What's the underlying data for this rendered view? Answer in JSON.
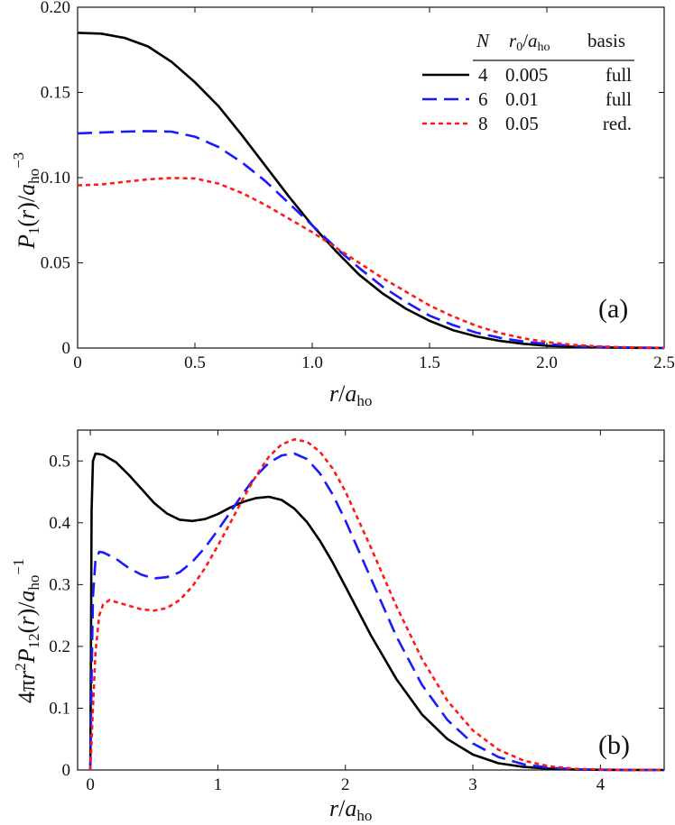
{
  "chart_data": [
    {
      "type": "line",
      "panel_label": "(a)",
      "xlabel": "r/a_ho",
      "ylabel": "P_1(r)/a_ho^-3",
      "xlim": [
        0,
        2.5
      ],
      "ylim": [
        0,
        0.2
      ],
      "xticks": [
        "0",
        "0.5",
        "1.0",
        "1.5",
        "2.0",
        "2.5"
      ],
      "xtick_values": [
        0,
        0.5,
        1.0,
        1.5,
        2.0,
        2.5
      ],
      "yticks": [
        "0",
        "0.05",
        "0.10",
        "0.15",
        "0.20"
      ],
      "ytick_values": [
        0,
        0.05,
        0.1,
        0.15,
        0.2
      ],
      "grid": false,
      "legend": {
        "placement": "top-right",
        "headers": [
          "N",
          "r0/a_ho",
          "basis"
        ],
        "rows": [
          {
            "N": "4",
            "r0": "0.005",
            "basis": "full",
            "color": "#000000",
            "style": "solid"
          },
          {
            "N": "6",
            "r0": "0.01",
            "basis": "full",
            "color": "#1a1aff",
            "style": "dashed"
          },
          {
            "N": "8",
            "r0": "0.05",
            "basis": "red.",
            "color": "#ff1a1a",
            "style": "dotted"
          }
        ]
      },
      "series": [
        {
          "color": "#000000",
          "style": "solid",
          "x": [
            0,
            0.1,
            0.2,
            0.3,
            0.4,
            0.5,
            0.6,
            0.7,
            0.8,
            0.9,
            1.0,
            1.1,
            1.2,
            1.3,
            1.4,
            1.5,
            1.6,
            1.7,
            1.8,
            1.9,
            2.0,
            2.1,
            2.2,
            2.3,
            2.4,
            2.5
          ],
          "y": [
            0.185,
            0.1845,
            0.182,
            0.177,
            0.168,
            0.156,
            0.142,
            0.125,
            0.107,
            0.089,
            0.072,
            0.057,
            0.043,
            0.032,
            0.023,
            0.016,
            0.0105,
            0.0068,
            0.0042,
            0.0025,
            0.0014,
            0.0008,
            0.0004,
            0.0002,
            0.0001,
            0.0
          ]
        },
        {
          "color": "#1a1aff",
          "style": "dashed",
          "x": [
            0,
            0.1,
            0.2,
            0.3,
            0.4,
            0.5,
            0.6,
            0.7,
            0.8,
            0.9,
            1.0,
            1.1,
            1.2,
            1.3,
            1.4,
            1.5,
            1.6,
            1.7,
            1.8,
            1.9,
            2.0,
            2.1,
            2.2,
            2.3,
            2.4,
            2.5
          ],
          "y": [
            0.126,
            0.1265,
            0.127,
            0.1273,
            0.127,
            0.124,
            0.118,
            0.109,
            0.098,
            0.085,
            0.072,
            0.059,
            0.047,
            0.036,
            0.027,
            0.019,
            0.0135,
            0.009,
            0.006,
            0.0038,
            0.0023,
            0.0013,
            0.0007,
            0.0004,
            0.0002,
            0.0001
          ]
        },
        {
          "color": "#ff1a1a",
          "style": "dotted",
          "x": [
            0,
            0.1,
            0.2,
            0.3,
            0.4,
            0.5,
            0.6,
            0.7,
            0.8,
            0.9,
            1.0,
            1.1,
            1.2,
            1.3,
            1.4,
            1.5,
            1.6,
            1.7,
            1.8,
            1.9,
            2.0,
            2.1,
            2.2,
            2.3,
            2.4,
            2.5
          ],
          "y": [
            0.0955,
            0.096,
            0.0975,
            0.099,
            0.0998,
            0.0995,
            0.0965,
            0.091,
            0.084,
            0.076,
            0.068,
            0.059,
            0.05,
            0.041,
            0.033,
            0.025,
            0.0185,
            0.013,
            0.0088,
            0.0057,
            0.0035,
            0.002,
            0.0011,
            0.0006,
            0.0003,
            0.0001
          ]
        }
      ]
    },
    {
      "type": "line",
      "panel_label": "(b)",
      "xlabel": "r/a_ho",
      "ylabel": "4πr^2 P_12(r)/a_ho^-1",
      "xlim": [
        -0.1,
        4.5
      ],
      "ylim": [
        0,
        0.55
      ],
      "xticks": [
        "0",
        "1",
        "2",
        "3",
        "4"
      ],
      "xtick_values": [
        0,
        1,
        2,
        3,
        4
      ],
      "yticks": [
        "0",
        "0.1",
        "0.2",
        "0.3",
        "0.4",
        "0.5"
      ],
      "ytick_values": [
        0,
        0.1,
        0.2,
        0.3,
        0.4,
        0.5
      ],
      "grid": false,
      "series": [
        {
          "color": "#000000",
          "style": "solid",
          "x": [
            0.0,
            0.005,
            0.01,
            0.02,
            0.04,
            0.1,
            0.2,
            0.3,
            0.4,
            0.5,
            0.6,
            0.7,
            0.8,
            0.9,
            1.0,
            1.1,
            1.2,
            1.3,
            1.4,
            1.5,
            1.6,
            1.7,
            1.8,
            1.9,
            2.0,
            2.2,
            2.4,
            2.6,
            2.8,
            3.0,
            3.2,
            3.4,
            3.6,
            3.8,
            4.0,
            4.2,
            4.5
          ],
          "y": [
            0.0,
            0.2,
            0.42,
            0.5,
            0.512,
            0.51,
            0.498,
            0.478,
            0.455,
            0.432,
            0.415,
            0.405,
            0.403,
            0.406,
            0.414,
            0.425,
            0.434,
            0.44,
            0.442,
            0.437,
            0.423,
            0.401,
            0.371,
            0.336,
            0.297,
            0.218,
            0.147,
            0.09,
            0.05,
            0.025,
            0.011,
            0.005,
            0.002,
            0.0008,
            0.0003,
            0.0001,
            0.0
          ]
        },
        {
          "color": "#1a1aff",
          "style": "dashed",
          "x": [
            0.0,
            0.01,
            0.02,
            0.04,
            0.07,
            0.1,
            0.2,
            0.3,
            0.4,
            0.5,
            0.6,
            0.7,
            0.8,
            0.9,
            1.0,
            1.1,
            1.2,
            1.3,
            1.4,
            1.5,
            1.6,
            1.7,
            1.8,
            1.9,
            2.0,
            2.2,
            2.4,
            2.6,
            2.8,
            3.0,
            3.2,
            3.4,
            3.6,
            3.8,
            4.0,
            4.2,
            4.5
          ],
          "y": [
            0.0,
            0.15,
            0.28,
            0.34,
            0.353,
            0.352,
            0.342,
            0.327,
            0.316,
            0.31,
            0.312,
            0.32,
            0.337,
            0.36,
            0.388,
            0.418,
            0.448,
            0.476,
            0.497,
            0.509,
            0.512,
            0.503,
            0.48,
            0.446,
            0.404,
            0.31,
            0.216,
            0.138,
            0.081,
            0.043,
            0.021,
            0.009,
            0.0037,
            0.0013,
            0.0004,
            0.0001,
            0.0
          ]
        },
        {
          "color": "#ff1a1a",
          "style": "dotted",
          "x": [
            0.0,
            0.02,
            0.04,
            0.07,
            0.1,
            0.15,
            0.2,
            0.3,
            0.4,
            0.5,
            0.6,
            0.7,
            0.8,
            0.9,
            1.0,
            1.1,
            1.2,
            1.3,
            1.4,
            1.5,
            1.6,
            1.7,
            1.8,
            1.9,
            2.0,
            2.2,
            2.4,
            2.6,
            2.8,
            3.0,
            3.2,
            3.4,
            3.6,
            3.8,
            4.0,
            4.2,
            4.5
          ],
          "y": [
            0.0,
            0.1,
            0.19,
            0.25,
            0.268,
            0.275,
            0.272,
            0.266,
            0.26,
            0.258,
            0.262,
            0.275,
            0.297,
            0.327,
            0.363,
            0.401,
            0.44,
            0.476,
            0.507,
            0.527,
            0.535,
            0.531,
            0.515,
            0.488,
            0.451,
            0.36,
            0.265,
            0.18,
            0.112,
            0.064,
            0.033,
            0.015,
            0.006,
            0.002,
            0.0007,
            0.0002,
            0.0
          ]
        }
      ]
    }
  ]
}
